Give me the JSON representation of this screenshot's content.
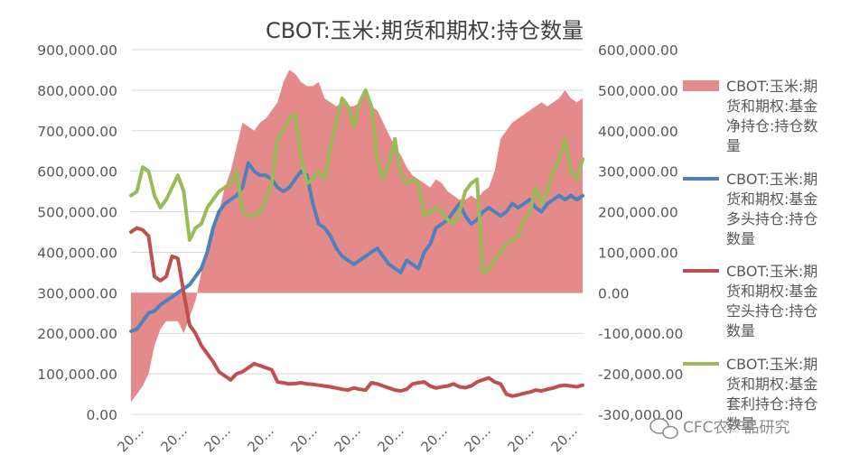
{
  "chart_data": {
    "type": "line",
    "title": "CBOT:玉米:期货和期权:持仓数量",
    "x_tick_labels": [
      "20...",
      "20...",
      "20...",
      "20...",
      "20...",
      "20...",
      "20...",
      "20...",
      "20...",
      "20...",
      "20..."
    ],
    "y_left": {
      "min": 0,
      "max": 900000,
      "step": 100000,
      "ticks": [
        "0.00",
        "100,000.00",
        "200,000.00",
        "300,000.00",
        "400,000.00",
        "500,000.00",
        "600,000.00",
        "700,000.00",
        "800,000.00",
        "900,000.00"
      ]
    },
    "y_right": {
      "min": -300000,
      "max": 600000,
      "step": 100000,
      "ticks": [
        "-300,000.00",
        "-200,000.00",
        "-100,000.00",
        "0.00",
        "100,000.00",
        "200,000.00",
        "300,000.00",
        "400,000.00",
        "500,000.00",
        "600,000.00"
      ]
    },
    "grid": true,
    "legend_position": "right",
    "series": [
      {
        "name": "CBOT:玉米:期货和期权:基金净持仓:持仓数量",
        "type": "area",
        "axis": "right",
        "color": "#E48A8A",
        "values": [
          -270000,
          -250000,
          -230000,
          -200000,
          -130000,
          -90000,
          -70000,
          -70000,
          -70000,
          -100000,
          -60000,
          -20000,
          50000,
          100000,
          150000,
          200000,
          260000,
          300000,
          360000,
          420000,
          410000,
          400000,
          420000,
          430000,
          450000,
          470000,
          520000,
          550000,
          540000,
          520000,
          510000,
          510000,
          520000,
          480000,
          470000,
          460000,
          470000,
          460000,
          460000,
          470000,
          500000,
          460000,
          450000,
          420000,
          390000,
          360000,
          340000,
          310000,
          290000,
          280000,
          270000,
          260000,
          280000,
          270000,
          250000,
          240000,
          230000,
          230000,
          240000,
          230000,
          250000,
          260000,
          300000,
          380000,
          400000,
          420000,
          430000,
          440000,
          450000,
          460000,
          470000,
          460000,
          470000,
          480000,
          500000,
          480000,
          470000,
          480000
        ]
      },
      {
        "name": "CBOT:玉米:期货和期权:基金多头持仓:持仓数量",
        "type": "line",
        "axis": "left",
        "color": "#4F81BD",
        "values": [
          205000,
          210000,
          230000,
          250000,
          255000,
          270000,
          280000,
          290000,
          300000,
          310000,
          320000,
          340000,
          360000,
          400000,
          460000,
          500000,
          520000,
          530000,
          540000,
          560000,
          620000,
          600000,
          590000,
          590000,
          580000,
          560000,
          550000,
          560000,
          580000,
          600000,
          590000,
          520000,
          470000,
          460000,
          440000,
          410000,
          390000,
          380000,
          370000,
          380000,
          390000,
          400000,
          410000,
          390000,
          370000,
          360000,
          350000,
          380000,
          370000,
          360000,
          400000,
          420000,
          460000,
          470000,
          480000,
          500000,
          520000,
          490000,
          470000,
          480000,
          500000,
          510000,
          500000,
          490000,
          500000,
          520000,
          510000,
          520000,
          530000,
          510000,
          500000,
          520000,
          530000,
          540000,
          530000,
          540000,
          530000,
          540000
        ]
      },
      {
        "name": "CBOT:玉米:期货和期权:基金空头持仓:持仓数量",
        "type": "line",
        "axis": "left",
        "color": "#C0504D",
        "values": [
          450000,
          460000,
          455000,
          440000,
          340000,
          330000,
          340000,
          390000,
          385000,
          300000,
          220000,
          200000,
          170000,
          150000,
          130000,
          105000,
          95000,
          85000,
          100000,
          105000,
          115000,
          125000,
          120000,
          115000,
          110000,
          80000,
          78000,
          75000,
          76000,
          78000,
          75000,
          74000,
          72000,
          70000,
          68000,
          65000,
          62000,
          60000,
          65000,
          62000,
          60000,
          78000,
          75000,
          70000,
          65000,
          60000,
          58000,
          62000,
          75000,
          78000,
          80000,
          70000,
          65000,
          68000,
          70000,
          75000,
          68000,
          66000,
          70000,
          80000,
          85000,
          90000,
          80000,
          75000,
          50000,
          45000,
          48000,
          52000,
          55000,
          60000,
          58000,
          62000,
          65000,
          70000,
          72000,
          70000,
          68000,
          72000
        ]
      },
      {
        "name": "CBOT:玉米:期货和期权:基金套利持仓:持仓数量",
        "type": "line",
        "axis": "right",
        "color": "#9BBB59",
        "values": [
          240000,
          250000,
          310000,
          300000,
          240000,
          210000,
          230000,
          260000,
          290000,
          250000,
          130000,
          160000,
          170000,
          210000,
          230000,
          250000,
          260000,
          270000,
          300000,
          200000,
          190000,
          190000,
          200000,
          230000,
          270000,
          380000,
          400000,
          430000,
          440000,
          330000,
          270000,
          280000,
          300000,
          280000,
          360000,
          420000,
          480000,
          460000,
          410000,
          470000,
          500000,
          460000,
          330000,
          280000,
          320000,
          380000,
          290000,
          270000,
          280000,
          270000,
          190000,
          200000,
          210000,
          200000,
          180000,
          170000,
          200000,
          250000,
          270000,
          280000,
          50000,
          60000,
          80000,
          100000,
          120000,
          130000,
          140000,
          180000,
          200000,
          260000,
          220000,
          250000,
          300000,
          330000,
          380000,
          300000,
          280000,
          330000
        ]
      }
    ],
    "legend_lines": [
      [
        "CBOT:玉米:期",
        "货和期权:基金",
        "净持仓:持仓数",
        "量"
      ],
      [
        "CBOT:玉米:期",
        "货和期权:基金",
        "多头持仓:持仓",
        "数量"
      ],
      [
        "CBOT:玉米:期",
        "货和期权:基金",
        "空头持仓:持仓",
        "数量"
      ],
      [
        "CBOT:玉米:期",
        "货和期权:基金",
        "套利持仓:持仓",
        "数量"
      ]
    ]
  },
  "watermark": "CFC农产品研究"
}
